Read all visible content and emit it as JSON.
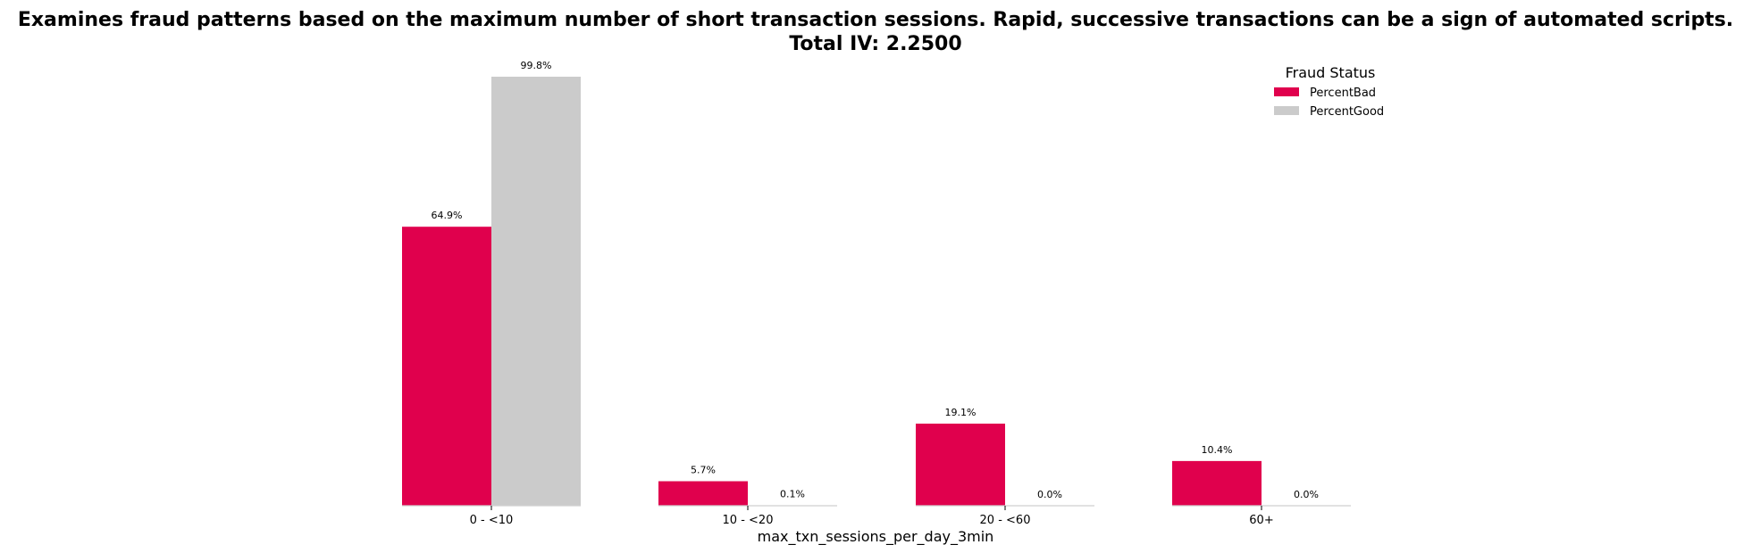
{
  "chart_data": {
    "type": "bar",
    "title": "Examines fraud patterns based on the maximum number of short transaction sessions. Rapid, successive transactions can be a sign of automated scripts.",
    "subtitle": "Total IV: 2.2500",
    "xlabel": "max_txn_sessions_per_day_3min",
    "ylabel": "",
    "categories": [
      "0 - <10",
      "10 - <20",
      "20 - <60",
      "60+"
    ],
    "series": [
      {
        "name": "PercentBad",
        "values": [
          64.9,
          5.7,
          19.1,
          10.4
        ],
        "labels": [
          "64.9%",
          "5.7%",
          "19.1%",
          "10.4%"
        ],
        "color": "#E0004D"
      },
      {
        "name": "PercentGood",
        "values": [
          99.8,
          0.1,
          0.0,
          0.0
        ],
        "labels": [
          "99.8%",
          "0.1%",
          "0.0%",
          "0.0%"
        ],
        "color": "#CBCBCB"
      }
    ],
    "ylim": [
      0,
      105
    ],
    "grid": false,
    "legend": {
      "title": "Fraud Status",
      "placement": "top-right"
    }
  }
}
